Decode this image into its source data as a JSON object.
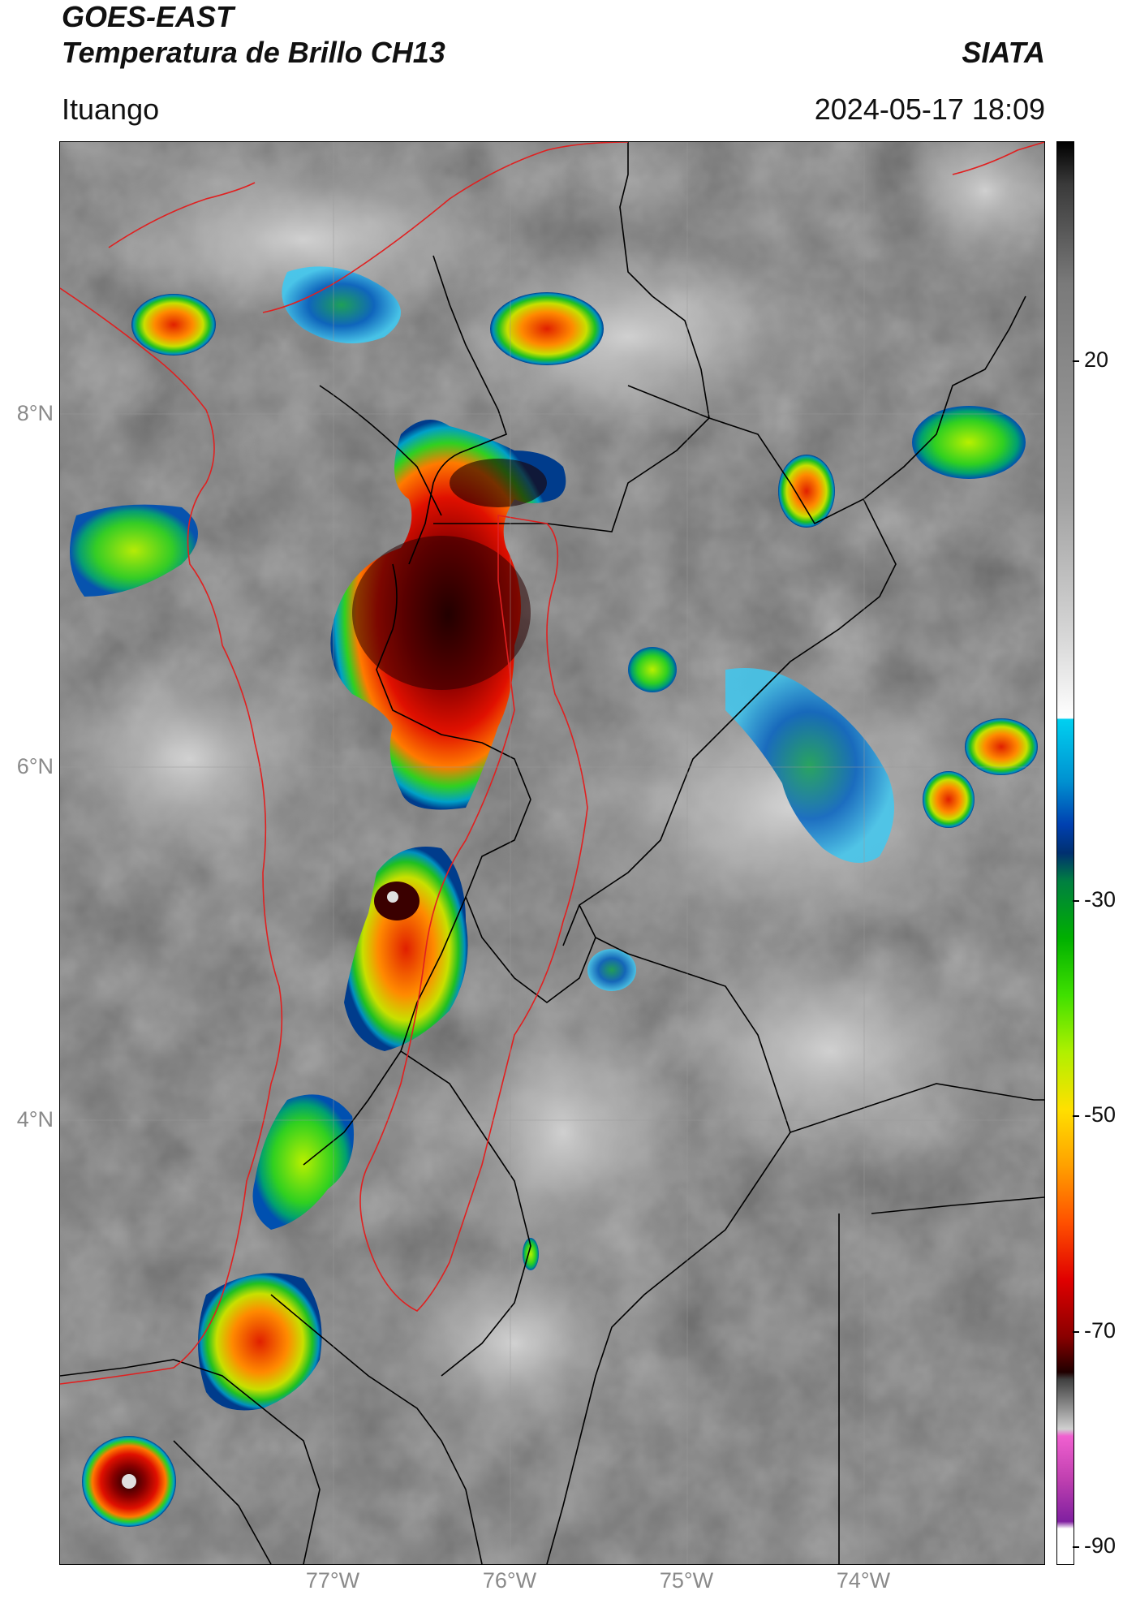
{
  "header": {
    "satellite": "GOES-EAST",
    "product": "Temperatura de Brillo CH13",
    "org": "SIATA",
    "location": "Ituango",
    "datetime": "2024-05-17 18:09"
  },
  "map": {
    "latitude_labels": [
      "8°N",
      "6°N",
      "4°N"
    ],
    "longitude_labels": [
      "77°W",
      "76°W",
      "75°W",
      "74°W"
    ]
  },
  "colorbar": {
    "tick_labels": [
      "20",
      "-30",
      "-50",
      "-70",
      "-90"
    ],
    "colors": [
      "#000000",
      "#4a4a4a",
      "#9a9a9a",
      "#f0f0f0",
      "#00c8f0",
      "#0050c8",
      "#00a050",
      "#40e000",
      "#ffe000",
      "#ff8000",
      "#e00000",
      "#400000",
      "#a0a0a0",
      "#e060d0",
      "#8020a0"
    ]
  }
}
